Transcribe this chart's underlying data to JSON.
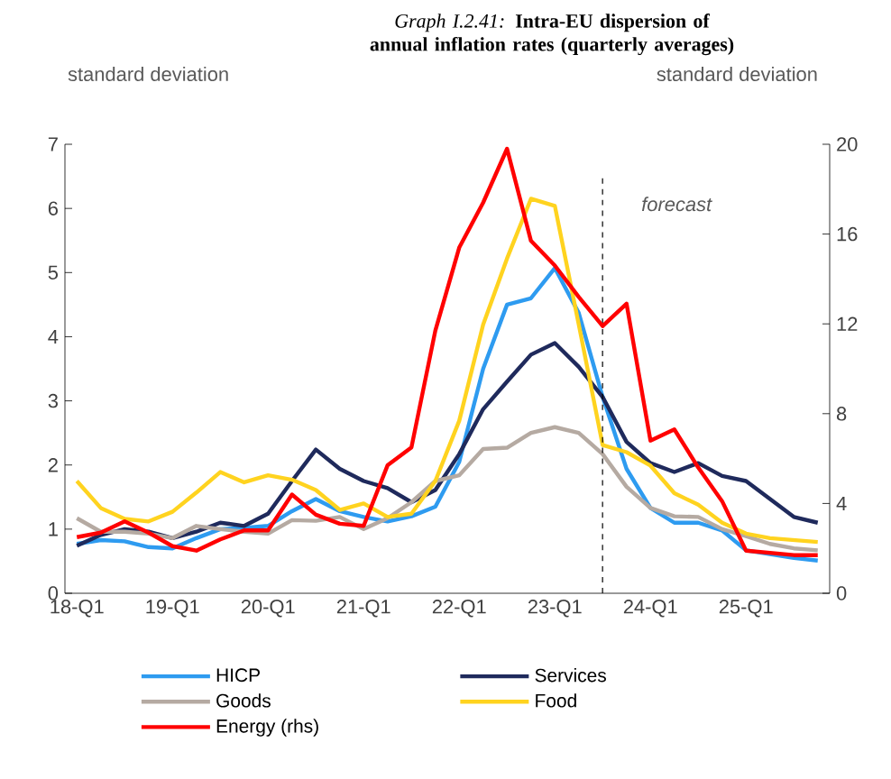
{
  "chart_data": {
    "type": "line",
    "title": "*Graph I.2.41:* **Intra-EU dispersion of annual inflation rates (quarterly averages)**",
    "ylabel": "standard deviation",
    "y2label": "standard deviation",
    "categories": [
      "18-Q1",
      null,
      null,
      null,
      "19-Q1",
      null,
      null,
      null,
      "20-Q1",
      null,
      null,
      null,
      "21-Q1",
      null,
      null,
      null,
      "22-Q1",
      null,
      null,
      null,
      "23-Q1",
      null,
      null,
      null,
      "24-Q1",
      null,
      null,
      null,
      "25-Q1",
      null,
      null,
      null
    ],
    "ylim": [
      0,
      7
    ],
    "yticks": [
      0,
      1,
      2,
      3,
      4,
      5,
      6,
      7
    ],
    "y2lim": [
      0,
      20
    ],
    "y2ticks": [
      0,
      4,
      8,
      12,
      16,
      20
    ],
    "series": [
      {
        "name": "HICP",
        "color": "#2e9bf0",
        "values": [
          0.77,
          0.83,
          0.81,
          0.72,
          0.7,
          0.86,
          1.0,
          1.02,
          1.05,
          1.28,
          1.47,
          1.28,
          1.19,
          1.12,
          1.2,
          1.35,
          2.05,
          3.5,
          4.5,
          4.6,
          5.07,
          4.37,
          3.06,
          1.94,
          1.33,
          1.1,
          1.1,
          0.98,
          0.67,
          0.61,
          0.55,
          0.51
        ]
      },
      {
        "name": "Services",
        "color": "#1f2a5c",
        "values": [
          0.74,
          0.91,
          1.0,
          0.96,
          0.86,
          0.96,
          1.1,
          1.05,
          1.24,
          1.75,
          2.24,
          1.94,
          1.75,
          1.64,
          1.42,
          1.61,
          2.17,
          2.87,
          3.3,
          3.72,
          3.9,
          3.53,
          3.06,
          2.36,
          2.03,
          1.89,
          2.03,
          1.83,
          1.75,
          1.47,
          1.19,
          1.1
        ]
      },
      {
        "name": "Goods",
        "color": "#b5aaa2",
        "values": [
          1.17,
          0.96,
          0.96,
          0.93,
          0.86,
          1.05,
          1.0,
          0.96,
          0.93,
          1.14,
          1.13,
          1.19,
          1.0,
          1.17,
          1.42,
          1.75,
          1.84,
          2.25,
          2.27,
          2.5,
          2.59,
          2.5,
          2.17,
          1.66,
          1.33,
          1.2,
          1.19,
          1.0,
          0.89,
          0.77,
          0.7,
          0.67
        ]
      },
      {
        "name": "Food",
        "color": "#ffd31f",
        "values": [
          1.75,
          1.33,
          1.16,
          1.12,
          1.27,
          1.57,
          1.89,
          1.73,
          1.84,
          1.77,
          1.61,
          1.3,
          1.4,
          1.19,
          1.24,
          1.75,
          2.69,
          4.19,
          5.22,
          6.15,
          6.04,
          4.19,
          2.31,
          2.2,
          1.99,
          1.56,
          1.38,
          1.1,
          0.93,
          0.86,
          0.83,
          0.8
        ]
      },
      {
        "name": "Energy (rhs)",
        "color": "#ff0000",
        "axis": "y2",
        "values": [
          2.5,
          2.7,
          3.2,
          2.7,
          2.1,
          1.9,
          2.4,
          2.8,
          2.8,
          4.4,
          3.5,
          3.1,
          3.0,
          5.7,
          6.5,
          11.7,
          15.4,
          17.4,
          19.8,
          15.7,
          14.6,
          13.2,
          11.9,
          12.9,
          6.8,
          7.3,
          5.6,
          4.1,
          1.9,
          1.8,
          1.7,
          1.7
        ]
      }
    ],
    "annotations": [
      "forecast"
    ],
    "legend": "bottom"
  }
}
